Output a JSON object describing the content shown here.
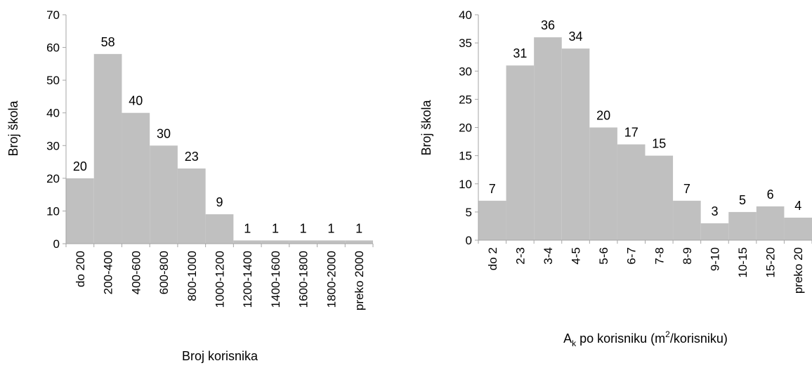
{
  "colors": {
    "bar": "#c0c0c0",
    "axis": "#a6a6a6",
    "text": "#000000"
  },
  "chart_data": [
    {
      "type": "bar",
      "categories": [
        "do 200",
        "200-400",
        "400-600",
        "600-800",
        "800-1000",
        "1000-1200",
        "1200-1400",
        "1400-1600",
        "1600-1800",
        "1800-2000",
        "preko 2000"
      ],
      "values": [
        20,
        58,
        40,
        30,
        23,
        9,
        1,
        1,
        1,
        1,
        1
      ],
      "data_labels": [
        "20",
        "58",
        "40",
        "30",
        "23",
        "9",
        "1",
        "1",
        "1",
        "1",
        "1"
      ],
      "ylabel": "Broj  škola",
      "xlabel": "Broj korisnika",
      "ylim": [
        0,
        70
      ],
      "yticks": [
        "0",
        "10",
        "20",
        "30",
        "40",
        "50",
        "60",
        "70"
      ],
      "grid": false,
      "legend": "none"
    },
    {
      "type": "bar",
      "categories": [
        "do 2",
        "2-3",
        "3-4",
        "4-5",
        "5-6",
        "6-7",
        "7-8",
        "8-9",
        "9-10",
        "10-15",
        "15-20",
        "preko 20"
      ],
      "values": [
        7,
        31,
        36,
        34,
        20,
        17,
        15,
        7,
        3,
        5,
        6,
        4
      ],
      "data_labels": [
        "7",
        "31",
        "36",
        "34",
        "20",
        "17",
        "15",
        "7",
        "3",
        "5",
        "6",
        "4"
      ],
      "ylabel": "Broj škola",
      "xlabel": {
        "main": "A",
        "sub": "k",
        "middle": " po korisniku (m",
        "sup": "2",
        "end": "/korisniku)"
      },
      "ylim": [
        0,
        40
      ],
      "yticks": [
        "0",
        "5",
        "10",
        "15",
        "20",
        "25",
        "30",
        "35",
        "40"
      ],
      "grid": false,
      "legend": "none"
    }
  ]
}
